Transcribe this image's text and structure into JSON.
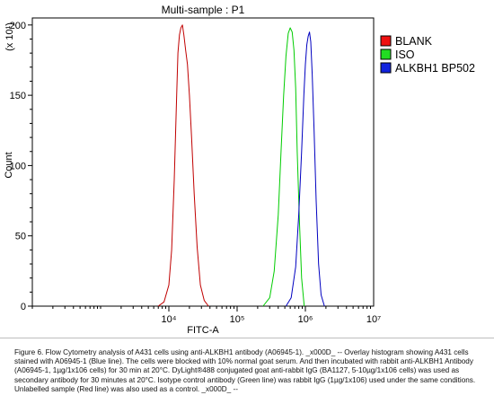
{
  "chart_data": {
    "type": "line",
    "title": "Multi-sample : P1",
    "xlabel": "FITC-A",
    "ylabel": "Count",
    "y_multiplier": "(x 10¹)",
    "x_scale": "log",
    "xlim": [
      100,
      10000000
    ],
    "x_ticks": [
      {
        "value": 10000,
        "label": "10⁴"
      },
      {
        "value": 100000,
        "label": "10⁵"
      },
      {
        "value": 1000000,
        "label": "10⁶"
      },
      {
        "value": 10000000,
        "label": "10⁷"
      }
    ],
    "ylim": [
      0,
      205
    ],
    "y_ticks": [
      0,
      50,
      100,
      150,
      200
    ],
    "legend_position": "top-right",
    "series": [
      {
        "name": "BLANK",
        "color": "#c00000",
        "legend_color": "#ee1111",
        "x": [
          7000,
          8500,
          10000,
          11000,
          12000,
          13000,
          13600,
          14300,
          15000,
          15800,
          16600,
          17600,
          18700,
          20000,
          21500,
          23500,
          26000,
          29000,
          33000,
          38000
        ],
        "y": [
          0,
          3,
          15,
          40,
          90,
          150,
          180,
          193,
          198,
          200,
          193,
          182,
          172,
          150,
          120,
          80,
          42,
          15,
          4,
          0
        ]
      },
      {
        "name": "ISO",
        "color": "#00cc00",
        "legend_color": "#22dd22",
        "x": [
          240000,
          300000,
          350000,
          400000,
          440000,
          480000,
          520000,
          560000,
          600000,
          640000,
          680000,
          720000,
          760000,
          820000,
          880000,
          960000
        ],
        "y": [
          0,
          6,
          25,
          65,
          110,
          150,
          178,
          194,
          198,
          195,
          182,
          155,
          110,
          60,
          20,
          0
        ]
      },
      {
        "name": "ALKBH1 BP502",
        "color": "#0000c0",
        "legend_color": "#1122dd",
        "x": [
          520000,
          620000,
          720000,
          800000,
          880000,
          950000,
          1000000,
          1050000,
          1100000,
          1150000,
          1200000,
          1260000,
          1340000,
          1440000,
          1560000,
          1700000,
          1900000
        ],
        "y": [
          0,
          6,
          28,
          65,
          110,
          150,
          172,
          186,
          192,
          195,
          188,
          165,
          125,
          75,
          30,
          8,
          0
        ]
      }
    ]
  },
  "caption": "Figure 6. Flow Cytometry analysis of A431 cells using anti-ALKBH1 antibody (A06945-1). _x000D_ -- Overlay histogram showing A431 cells stained with A06945-1 (Blue line). The cells were blocked with 10% normal goat serum. And then incubated with rabbit anti-ALKBH1 Antibody (A06945-1, 1µg/1x106 cells) for 30 min at 20°C. DyLight®488 conjugated goat anti-rabbit IgG (BA1127, 5-10µg/1x106 cells) was used as secondary antibody for 30 minutes at 20°C. Isotype control antibody (Green line) was rabbit IgG (1µg/1x106) used under the same conditions. Unlabelled sample (Red line) was also used as a control. _x000D_ --"
}
